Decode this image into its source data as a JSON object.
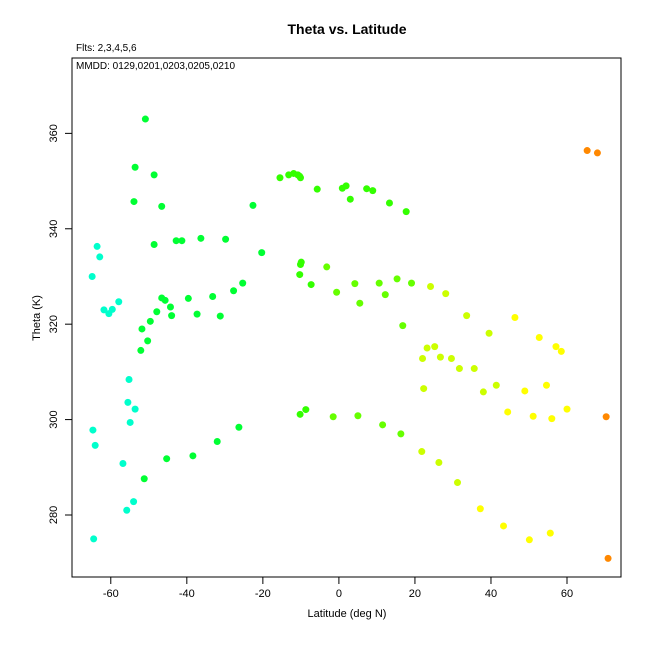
{
  "chart_data": {
    "type": "scatter",
    "title": "Theta vs. Latitude",
    "annotations": [
      "Flts: 2,3,4,5,6",
      "MMDD: 0129,0201,0203,0205,0210"
    ],
    "xlabel": "Latitude (deg N)",
    "ylabel": "Theta (K)",
    "xlim": [
      -70.2,
      74.2
    ],
    "ylim": [
      267,
      375.8
    ],
    "xticks": [
      -60,
      -40,
      -20,
      0,
      20,
      40,
      60
    ],
    "yticks": [
      280,
      300,
      320,
      340,
      360
    ],
    "grid": false,
    "legend": "none",
    "color_scale": {
      "colored_by": "latitude",
      "colors": [
        "#00ffcc",
        "#00ff33",
        "#66ff00",
        "#ffff00",
        "#ff8800"
      ]
    },
    "points": [
      {
        "x": -64.9,
        "y": 330.0,
        "color": "#00ffcc"
      },
      {
        "x": -63.6,
        "y": 336.3,
        "color": "#00ffcc"
      },
      {
        "x": -62.9,
        "y": 334.1,
        "color": "#00ffcc"
      },
      {
        "x": -61.8,
        "y": 323.0,
        "color": "#00ffcc"
      },
      {
        "x": -60.5,
        "y": 322.2,
        "color": "#00ffcc"
      },
      {
        "x": -59.6,
        "y": 323.1,
        "color": "#00ffcc"
      },
      {
        "x": -57.9,
        "y": 324.7,
        "color": "#00ffcc"
      },
      {
        "x": -64.7,
        "y": 297.8,
        "color": "#00ffcc"
      },
      {
        "x": -64.1,
        "y": 294.6,
        "color": "#00ffcc"
      },
      {
        "x": -64.5,
        "y": 275.0,
        "color": "#00ffcc"
      },
      {
        "x": -55.2,
        "y": 308.4,
        "color": "#00ffcc"
      },
      {
        "x": -55.5,
        "y": 303.6,
        "color": "#00ffcc"
      },
      {
        "x": -54.9,
        "y": 299.4,
        "color": "#00ffcc"
      },
      {
        "x": -53.6,
        "y": 302.2,
        "color": "#00ffcc"
      },
      {
        "x": -56.8,
        "y": 290.8,
        "color": "#00ffcc"
      },
      {
        "x": -54.0,
        "y": 282.8,
        "color": "#00ffcc"
      },
      {
        "x": -55.8,
        "y": 281.0,
        "color": "#00ffcc"
      },
      {
        "x": -50.9,
        "y": 363.0,
        "color": "#00ff33"
      },
      {
        "x": -53.6,
        "y": 352.9,
        "color": "#00ff33"
      },
      {
        "x": -48.6,
        "y": 351.3,
        "color": "#00ff33"
      },
      {
        "x": -53.9,
        "y": 345.7,
        "color": "#00ff33"
      },
      {
        "x": -46.6,
        "y": 344.7,
        "color": "#00ff33"
      },
      {
        "x": -42.8,
        "y": 337.5,
        "color": "#00ff33"
      },
      {
        "x": -41.3,
        "y": 337.5,
        "color": "#00ff33"
      },
      {
        "x": -48.6,
        "y": 336.7,
        "color": "#00ff33"
      },
      {
        "x": -36.3,
        "y": 338.0,
        "color": "#00ff33"
      },
      {
        "x": -29.8,
        "y": 337.8,
        "color": "#00ff33"
      },
      {
        "x": -22.6,
        "y": 344.9,
        "color": "#00ff33"
      },
      {
        "x": -20.3,
        "y": 335.0,
        "color": "#00ff33"
      },
      {
        "x": -46.6,
        "y": 325.5,
        "color": "#00ff33"
      },
      {
        "x": -45.7,
        "y": 325.0,
        "color": "#00ff33"
      },
      {
        "x": -44.3,
        "y": 323.6,
        "color": "#00ff33"
      },
      {
        "x": -47.9,
        "y": 322.6,
        "color": "#00ff33"
      },
      {
        "x": -44.0,
        "y": 321.8,
        "color": "#00ff33"
      },
      {
        "x": -49.6,
        "y": 320.6,
        "color": "#00ff33"
      },
      {
        "x": -51.8,
        "y": 319.0,
        "color": "#00ff33"
      },
      {
        "x": -50.3,
        "y": 316.5,
        "color": "#00ff33"
      },
      {
        "x": -52.1,
        "y": 314.5,
        "color": "#00ff33"
      },
      {
        "x": -39.6,
        "y": 325.4,
        "color": "#00ff33"
      },
      {
        "x": -37.3,
        "y": 322.1,
        "color": "#00ff33"
      },
      {
        "x": -33.2,
        "y": 325.8,
        "color": "#00ff33"
      },
      {
        "x": -31.2,
        "y": 321.7,
        "color": "#00ff33"
      },
      {
        "x": -27.7,
        "y": 327.0,
        "color": "#00ff33"
      },
      {
        "x": -25.3,
        "y": 328.6,
        "color": "#00ff33"
      },
      {
        "x": -51.2,
        "y": 287.6,
        "color": "#00ff33"
      },
      {
        "x": -45.3,
        "y": 291.8,
        "color": "#00ff33"
      },
      {
        "x": -38.4,
        "y": 292.4,
        "color": "#00ff33"
      },
      {
        "x": -32.0,
        "y": 295.4,
        "color": "#00ff33"
      },
      {
        "x": -26.3,
        "y": 298.4,
        "color": "#00ff33"
      },
      {
        "x": -15.5,
        "y": 350.7,
        "color": "#33ff00"
      },
      {
        "x": -13.2,
        "y": 351.3,
        "color": "#33ff00"
      },
      {
        "x": -11.9,
        "y": 351.6,
        "color": "#33ff00"
      },
      {
        "x": -10.8,
        "y": 351.3,
        "color": "#33ff00"
      },
      {
        "x": -10.1,
        "y": 350.7,
        "color": "#33ff00"
      },
      {
        "x": -10.3,
        "y": 351.0,
        "color": "#33ff00"
      },
      {
        "x": -5.7,
        "y": 348.3,
        "color": "#33ff00"
      },
      {
        "x": 0.9,
        "y": 348.5,
        "color": "#33ff00"
      },
      {
        "x": 1.9,
        "y": 349.0,
        "color": "#33ff00"
      },
      {
        "x": 3.0,
        "y": 346.2,
        "color": "#33ff00"
      },
      {
        "x": 7.3,
        "y": 348.4,
        "color": "#33ff00"
      },
      {
        "x": 8.9,
        "y": 348.0,
        "color": "#33ff00"
      },
      {
        "x": 13.3,
        "y": 345.4,
        "color": "#33ff00"
      },
      {
        "x": 17.7,
        "y": 343.6,
        "color": "#33ff00"
      },
      {
        "x": -10.1,
        "y": 332.5,
        "color": "#33ff00"
      },
      {
        "x": -9.9,
        "y": 333.0,
        "color": "#33ff00"
      },
      {
        "x": -10.3,
        "y": 330.4,
        "color": "#33ff00"
      },
      {
        "x": -7.3,
        "y": 328.3,
        "color": "#33ff00"
      },
      {
        "x": -3.2,
        "y": 332.0,
        "color": "#66ff00"
      },
      {
        "x": -0.6,
        "y": 326.7,
        "color": "#66ff00"
      },
      {
        "x": 4.2,
        "y": 328.5,
        "color": "#66ff00"
      },
      {
        "x": 5.5,
        "y": 324.4,
        "color": "#66ff00"
      },
      {
        "x": 10.6,
        "y": 328.6,
        "color": "#66ff00"
      },
      {
        "x": 12.2,
        "y": 326.2,
        "color": "#66ff00"
      },
      {
        "x": 15.3,
        "y": 329.5,
        "color": "#66ff00"
      },
      {
        "x": 16.8,
        "y": 319.7,
        "color": "#66ff00"
      },
      {
        "x": 19.1,
        "y": 328.6,
        "color": "#66ff00"
      },
      {
        "x": -10.2,
        "y": 301.1,
        "color": "#33ff00"
      },
      {
        "x": -8.7,
        "y": 302.1,
        "color": "#33ff00"
      },
      {
        "x": -1.5,
        "y": 300.6,
        "color": "#66ff00"
      },
      {
        "x": 5.0,
        "y": 300.8,
        "color": "#66ff00"
      },
      {
        "x": 11.5,
        "y": 298.9,
        "color": "#66ff00"
      },
      {
        "x": 16.3,
        "y": 297.0,
        "color": "#66ff00"
      },
      {
        "x": 24.1,
        "y": 327.9,
        "color": "#ccff00"
      },
      {
        "x": 28.1,
        "y": 326.4,
        "color": "#ccff00"
      },
      {
        "x": 22.0,
        "y": 312.8,
        "color": "#ccff00"
      },
      {
        "x": 23.2,
        "y": 315.0,
        "color": "#ccff00"
      },
      {
        "x": 25.2,
        "y": 315.3,
        "color": "#ccff00"
      },
      {
        "x": 26.7,
        "y": 313.1,
        "color": "#ccff00"
      },
      {
        "x": 29.6,
        "y": 312.8,
        "color": "#ccff00"
      },
      {
        "x": 31.7,
        "y": 310.7,
        "color": "#ccff00"
      },
      {
        "x": 33.6,
        "y": 321.8,
        "color": "#ccff00"
      },
      {
        "x": 35.6,
        "y": 310.7,
        "color": "#ccff00"
      },
      {
        "x": 38.0,
        "y": 305.8,
        "color": "#ccff00"
      },
      {
        "x": 39.5,
        "y": 318.1,
        "color": "#ccff00"
      },
      {
        "x": 41.4,
        "y": 307.2,
        "color": "#ccff00"
      },
      {
        "x": 22.3,
        "y": 306.5,
        "color": "#ccff00"
      },
      {
        "x": 44.4,
        "y": 301.6,
        "color": "#ffff00"
      },
      {
        "x": 46.3,
        "y": 321.4,
        "color": "#ffff00"
      },
      {
        "x": 48.9,
        "y": 306.0,
        "color": "#ffff00"
      },
      {
        "x": 51.1,
        "y": 300.7,
        "color": "#ffff00"
      },
      {
        "x": 52.7,
        "y": 317.2,
        "color": "#ffff00"
      },
      {
        "x": 54.6,
        "y": 307.2,
        "color": "#ffff00"
      },
      {
        "x": 56.0,
        "y": 300.2,
        "color": "#ffff00"
      },
      {
        "x": 57.1,
        "y": 315.3,
        "color": "#ffff00"
      },
      {
        "x": 58.5,
        "y": 314.3,
        "color": "#ffff00"
      },
      {
        "x": 60.0,
        "y": 302.2,
        "color": "#ffff00"
      },
      {
        "x": 21.8,
        "y": 293.3,
        "color": "#ccff00"
      },
      {
        "x": 26.3,
        "y": 291.0,
        "color": "#ccff00"
      },
      {
        "x": 31.2,
        "y": 286.8,
        "color": "#ccff00"
      },
      {
        "x": 37.2,
        "y": 281.3,
        "color": "#ffff00"
      },
      {
        "x": 43.3,
        "y": 277.7,
        "color": "#ffff00"
      },
      {
        "x": 50.1,
        "y": 274.8,
        "color": "#ffff00"
      },
      {
        "x": 55.6,
        "y": 276.2,
        "color": "#ffff00"
      },
      {
        "x": 65.3,
        "y": 356.4,
        "color": "#ff8800"
      },
      {
        "x": 68.0,
        "y": 355.9,
        "color": "#ff8800"
      },
      {
        "x": 70.3,
        "y": 300.6,
        "color": "#ff8800"
      },
      {
        "x": 70.8,
        "y": 270.9,
        "color": "#ff8800"
      }
    ]
  }
}
